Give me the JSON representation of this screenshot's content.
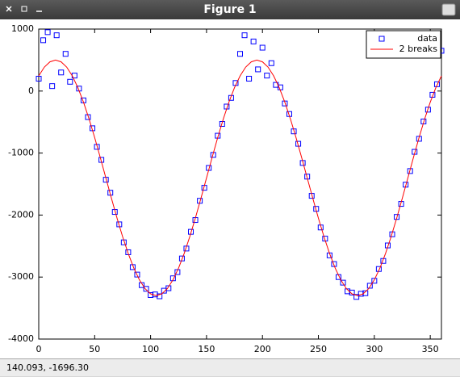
{
  "window": {
    "title": "Figure 1",
    "status": "140.093, -1696.30"
  },
  "chart_data": {
    "type": "scatter",
    "legend": "northeast",
    "xlim": [
      0,
      360
    ],
    "ylim": [
      -4000,
      1000
    ],
    "xticks": [
      0,
      50,
      100,
      150,
      200,
      250,
      300,
      350
    ],
    "yticks": [
      -4000,
      -3000,
      -2000,
      -1000,
      0,
      1000
    ],
    "series": [
      {
        "name": "data",
        "color": "#0000ff",
        "mode": "markers",
        "x": [
          0,
          4,
          8,
          12,
          16,
          20,
          24,
          28,
          32,
          36,
          40,
          44,
          48,
          52,
          56,
          60,
          64,
          68,
          72,
          76,
          80,
          84,
          88,
          92,
          96,
          100,
          104,
          108,
          112,
          116,
          120,
          124,
          128,
          132,
          136,
          140,
          144,
          148,
          152,
          156,
          160,
          164,
          168,
          172,
          176,
          180,
          184,
          188,
          192,
          196,
          200,
          204,
          208,
          212,
          216,
          220,
          224,
          228,
          232,
          236,
          240,
          244,
          248,
          252,
          256,
          260,
          264,
          268,
          272,
          276,
          280,
          284,
          288,
          292,
          296,
          300,
          304,
          308,
          312,
          316,
          320,
          324,
          328,
          332,
          336,
          340,
          344,
          348,
          352,
          356,
          360
        ],
        "values": [
          200,
          820,
          950,
          80,
          900,
          300,
          600,
          150,
          250,
          40,
          -150,
          -420,
          -600,
          -900,
          -1110,
          -1430,
          -1640,
          -1950,
          -2150,
          -2440,
          -2600,
          -2840,
          -2960,
          -3130,
          -3190,
          -3290,
          -3280,
          -3310,
          -3220,
          -3180,
          -3020,
          -2920,
          -2700,
          -2540,
          -2270,
          -2080,
          -1770,
          -1560,
          -1240,
          -1030,
          -720,
          -530,
          -250,
          -110,
          130,
          600,
          900,
          200,
          800,
          350,
          700,
          250,
          450,
          100,
          60,
          -200,
          -370,
          -650,
          -850,
          -1160,
          -1380,
          -1690,
          -1900,
          -2200,
          -2380,
          -2650,
          -2790,
          -3000,
          -3090,
          -3230,
          -3250,
          -3320,
          -3270,
          -3260,
          -3140,
          -3060,
          -2870,
          -2740,
          -2490,
          -2310,
          -2030,
          -1820,
          -1510,
          -1290,
          -980,
          -770,
          -490,
          -300,
          -60,
          110,
          650
        ]
      },
      {
        "name": "2 breaks",
        "color": "#ff0000",
        "mode": "line",
        "x": [
          0,
          5,
          10,
          15,
          20,
          25,
          30,
          35,
          40,
          45,
          50,
          55,
          60,
          65,
          70,
          75,
          80,
          85,
          90,
          95,
          100,
          105,
          110,
          115,
          120,
          125,
          130,
          135,
          140,
          145,
          150,
          155,
          160,
          165,
          170,
          175,
          180,
          185,
          190,
          195,
          200,
          205,
          210,
          215,
          220,
          225,
          230,
          235,
          240,
          245,
          250,
          255,
          260,
          265,
          270,
          275,
          280,
          285,
          290,
          295,
          300,
          305,
          310,
          315,
          320,
          325,
          330,
          335,
          340,
          345,
          350,
          355,
          360
        ],
        "values": [
          245,
          386,
          471,
          500,
          471,
          386,
          245,
          55,
          -179,
          -450,
          -750,
          -1070,
          -1400,
          -1730,
          -2050,
          -2350,
          -2621,
          -2855,
          -3045,
          -3186,
          -3271,
          -3300,
          -3271,
          -3186,
          -3045,
          -2855,
          -2621,
          -2350,
          -2050,
          -1730,
          -1400,
          -1070,
          -750,
          -450,
          -179,
          55,
          245,
          386,
          471,
          500,
          471,
          386,
          245,
          55,
          -179,
          -450,
          -750,
          -1070,
          -1400,
          -1730,
          -2050,
          -2350,
          -2621,
          -2855,
          -3045,
          -3186,
          -3271,
          -3300,
          -3271,
          -3186,
          -3045,
          -2855,
          -2621,
          -2350,
          -2050,
          -1730,
          -1400,
          -1070,
          -750,
          -450,
          -179,
          55,
          245
        ]
      }
    ]
  }
}
